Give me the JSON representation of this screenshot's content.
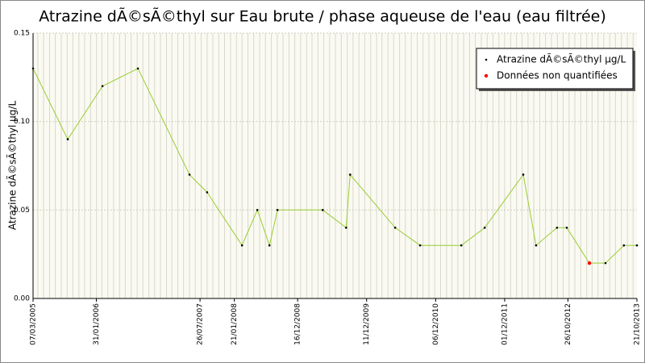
{
  "chart_data": {
    "type": "line",
    "title": "Atrazine dÃ©sÃ©thyl sur Eau brute / phase aqueuse de l'eau (eau filtrée)",
    "y_label": "Atrazine dÃ©sÃ©thyl µg/L",
    "x": [
      "2005-03-07",
      "2005-09-04",
      "2006-03-04",
      "2006-09-05",
      "2007-06-01",
      "2007-09-01",
      "2008-03-01",
      "2008-05-20",
      "2008-07-22",
      "2008-09-02",
      "2009-04-26",
      "2009-08-26",
      "2009-09-16",
      "2010-05-09",
      "2010-09-16",
      "2011-04-19",
      "2011-08-19",
      "2012-03-07",
      "2012-05-13",
      "2012-08-30",
      "2012-10-20",
      "2013-02-15",
      "2013-05-10",
      "2013-08-14",
      "2013-10-21"
    ],
    "series": [
      {
        "name": "Atrazine dÃ©sÃ©thyl µg/L",
        "color": "#000000",
        "line_color": "#9acd32",
        "values": [
          0.13,
          0.09,
          0.12,
          0.13,
          0.07,
          0.06,
          0.03,
          0.05,
          0.03,
          0.05,
          0.05,
          0.04,
          0.07,
          0.04,
          0.03,
          0.03,
          0.04,
          0.07,
          0.03,
          0.04,
          0.04,
          0.02,
          0.02,
          0.03,
          0.03
        ]
      },
      {
        "name": "Données non quantifiées",
        "color": "#ff0000",
        "values": [
          null,
          null,
          null,
          null,
          null,
          null,
          null,
          null,
          null,
          null,
          null,
          null,
          null,
          null,
          null,
          null,
          null,
          null,
          null,
          null,
          null,
          0.02,
          null,
          null,
          null
        ]
      }
    ],
    "xlim": [
      "2005-03-07",
      "2013-10-21"
    ],
    "xticks": [
      {
        "value": "2005-03-07",
        "label": "07/03/2005"
      },
      {
        "value": "2006-01-31",
        "label": "31/01/2006"
      },
      {
        "value": "2007-07-26",
        "label": "26/07/2007"
      },
      {
        "value": "2008-01-21",
        "label": "21/01/2008"
      },
      {
        "value": "2008-12-16",
        "label": "16/12/2008"
      },
      {
        "value": "2009-12-11",
        "label": "11/12/2009"
      },
      {
        "value": "2010-12-06",
        "label": "06/12/2010"
      },
      {
        "value": "2011-12-01",
        "label": "01/12/2011"
      },
      {
        "value": "2012-10-26",
        "label": "26/10/2012"
      },
      {
        "value": "2013-10-21",
        "label": "21/10/2013"
      }
    ],
    "ylim": [
      0,
      0.15
    ],
    "yticks": [
      {
        "value": 0,
        "label": "0.00"
      },
      0.05,
      {
        "value": 0.1,
        "label": "0.10"
      },
      0.15
    ],
    "grid": true,
    "legend_position": "upper right"
  }
}
